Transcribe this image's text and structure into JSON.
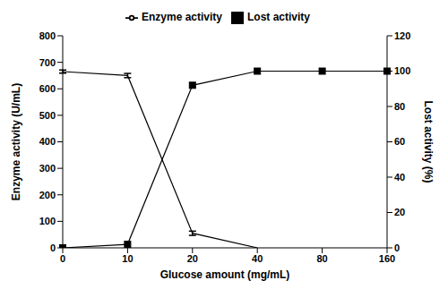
{
  "chart_data": {
    "type": "line",
    "categories": [
      "0",
      "10",
      "20",
      "40",
      "80",
      "160"
    ],
    "x_label": "Glucose amount (mg/mL)",
    "y_label": "Enzyme activity (U/mL)",
    "y2_label": "Lost activity (%)",
    "ylim": [
      0,
      800
    ],
    "yticks": [
      0,
      100,
      200,
      300,
      400,
      500,
      600,
      700,
      800
    ],
    "y2lim": [
      0,
      120
    ],
    "y2ticks": [
      0,
      20,
      40,
      60,
      80,
      100,
      120
    ],
    "legend": "top",
    "series": [
      {
        "name": "Enzyme activity",
        "color": "#000000",
        "marker": "none",
        "values": [
          665,
          650,
          55,
          0,
          null,
          null
        ],
        "errors": [
          6,
          8,
          8,
          0,
          null,
          null
        ]
      },
      {
        "name": "Lost activity",
        "color": "#000000",
        "marker": "square",
        "axis": "y2",
        "values": [
          0,
          2,
          92,
          100,
          100,
          100
        ]
      }
    ]
  }
}
